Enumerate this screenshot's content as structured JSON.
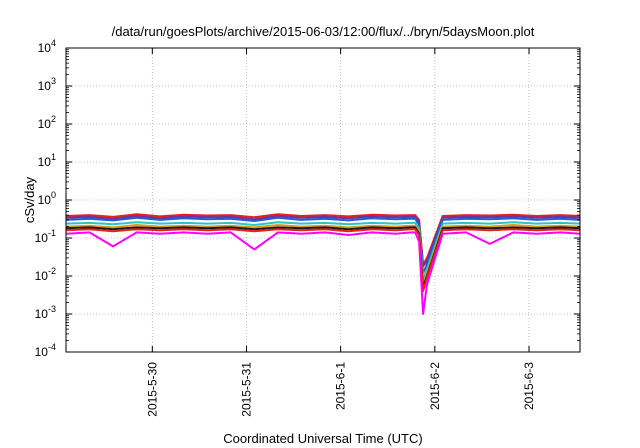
{
  "chart_data": {
    "type": "line",
    "title": "/data/run/goesPlots/archive/2015-06-03/12:00/flux/../bryn/5daysMoon.plot",
    "xlabel": "Coordinated Universal Time (UTC)",
    "ylabel": "cSv/day",
    "y_scale": "log",
    "ylim": [
      0.0001,
      10000
    ],
    "y_ticks": [
      {
        "base": "10",
        "exp": "-4"
      },
      {
        "base": "10",
        "exp": "-3"
      },
      {
        "base": "10",
        "exp": "-2"
      },
      {
        "base": "10",
        "exp": "-1"
      },
      {
        "base": "10",
        "exp": "0"
      },
      {
        "base": "10",
        "exp": "1"
      },
      {
        "base": "10",
        "exp": "2"
      },
      {
        "base": "10",
        "exp": "3"
      },
      {
        "base": "10",
        "exp": "4"
      }
    ],
    "x_range": [
      "2015-05-29 02:00",
      "2015-06-03 13:00"
    ],
    "x_ticks": [
      {
        "label": "2015-5-30",
        "date": "2015-05-30"
      },
      {
        "label": "2015-5-31",
        "date": "2015-05-31"
      },
      {
        "label": "2015-6-1",
        "date": "2015-06-01"
      },
      {
        "label": "2015-6-2",
        "date": "2015-06-02"
      },
      {
        "label": "2015-6-3",
        "date": "2015-06-03"
      }
    ],
    "grid": true,
    "legend": "none",
    "x": [
      "2015-05-29 02:00",
      "2015-05-29 08:00",
      "2015-05-29 14:00",
      "2015-05-29 20:00",
      "2015-05-30 02:00",
      "2015-05-30 08:00",
      "2015-05-30 14:00",
      "2015-05-30 20:00",
      "2015-05-31 02:00",
      "2015-05-31 08:00",
      "2015-05-31 14:00",
      "2015-05-31 20:00",
      "2015-06-01 02:00",
      "2015-06-01 08:00",
      "2015-06-01 14:00",
      "2015-06-01 18:00",
      "2015-06-01 19:00",
      "2015-06-01 20:00",
      "2015-06-01 21:00",
      "2015-06-01 22:00",
      "2015-06-02 02:00",
      "2015-06-02 08:00",
      "2015-06-02 14:00",
      "2015-06-02 20:00",
      "2015-06-03 02:00",
      "2015-06-03 08:00",
      "2015-06-03 13:00"
    ],
    "series": [
      {
        "color": "#e8201c",
        "values": [
          0.38,
          0.4,
          0.36,
          0.42,
          0.37,
          0.41,
          0.39,
          0.4,
          0.35,
          0.42,
          0.38,
          0.4,
          0.37,
          0.41,
          0.39,
          0.4,
          0.4,
          0.3,
          0.02,
          0.03,
          0.38,
          0.4,
          0.39,
          0.41,
          0.38,
          0.4,
          0.38
        ]
      },
      {
        "color": "#7030a0",
        "values": [
          0.34,
          0.36,
          0.32,
          0.38,
          0.33,
          0.37,
          0.35,
          0.36,
          0.31,
          0.38,
          0.34,
          0.36,
          0.33,
          0.37,
          0.35,
          0.36,
          0.36,
          0.26,
          0.018,
          0.025,
          0.34,
          0.36,
          0.35,
          0.37,
          0.34,
          0.36,
          0.34
        ]
      },
      {
        "color": "#1f5fd6",
        "values": [
          0.3,
          0.32,
          0.29,
          0.34,
          0.3,
          0.33,
          0.31,
          0.32,
          0.28,
          0.34,
          0.3,
          0.32,
          0.29,
          0.33,
          0.31,
          0.32,
          0.32,
          0.22,
          0.012,
          0.02,
          0.3,
          0.32,
          0.31,
          0.33,
          0.3,
          0.32,
          0.3
        ]
      },
      {
        "color": "#2ec4c4",
        "values": [
          0.24,
          0.25,
          0.23,
          0.26,
          0.24,
          0.25,
          0.24,
          0.25,
          0.22,
          0.26,
          0.24,
          0.25,
          0.23,
          0.25,
          0.24,
          0.25,
          0.25,
          0.18,
          0.008,
          0.015,
          0.24,
          0.25,
          0.24,
          0.26,
          0.24,
          0.25,
          0.24
        ]
      },
      {
        "color": "#d4a017",
        "values": [
          0.2,
          0.21,
          0.19,
          0.22,
          0.2,
          0.21,
          0.2,
          0.21,
          0.19,
          0.22,
          0.2,
          0.21,
          0.19,
          0.21,
          0.2,
          0.21,
          0.21,
          0.15,
          0.006,
          0.012,
          0.2,
          0.21,
          0.2,
          0.22,
          0.2,
          0.21,
          0.2
        ]
      },
      {
        "color": "#1a1a1a",
        "values": [
          0.18,
          0.19,
          0.17,
          0.19,
          0.18,
          0.19,
          0.18,
          0.19,
          0.17,
          0.19,
          0.18,
          0.19,
          0.17,
          0.19,
          0.18,
          0.19,
          0.19,
          0.13,
          0.005,
          0.01,
          0.18,
          0.19,
          0.18,
          0.19,
          0.18,
          0.19,
          0.18
        ]
      },
      {
        "color": "#e8201c",
        "values": [
          0.16,
          0.17,
          0.15,
          0.17,
          0.16,
          0.17,
          0.16,
          0.17,
          0.15,
          0.17,
          0.16,
          0.17,
          0.15,
          0.17,
          0.16,
          0.17,
          0.17,
          0.12,
          0.004,
          0.009,
          0.16,
          0.17,
          0.16,
          0.17,
          0.16,
          0.17,
          0.16
        ]
      },
      {
        "color": "#ff00ff",
        "values": [
          0.13,
          0.14,
          0.06,
          0.14,
          0.13,
          0.14,
          0.13,
          0.14,
          0.05,
          0.14,
          0.13,
          0.14,
          0.12,
          0.14,
          0.13,
          0.14,
          0.14,
          0.08,
          0.001,
          0.006,
          0.13,
          0.14,
          0.07,
          0.14,
          0.13,
          0.14,
          0.13
        ]
      }
    ]
  }
}
